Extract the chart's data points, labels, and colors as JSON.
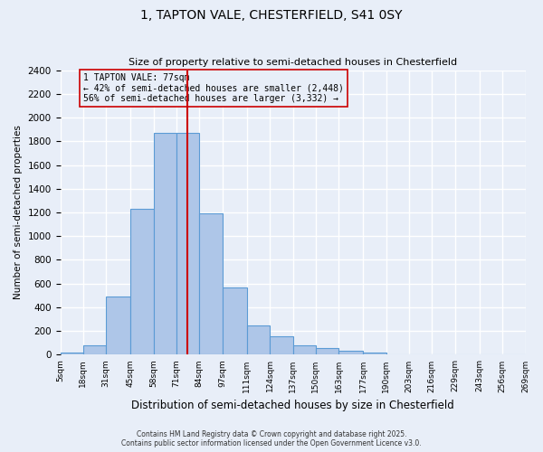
{
  "title": "1, TAPTON VALE, CHESTERFIELD, S41 0SY",
  "subtitle": "Size of property relative to semi-detached houses in Chesterfield",
  "xlabel": "Distribution of semi-detached houses by size in Chesterfield",
  "ylabel": "Number of semi-detached properties",
  "bins": [
    5,
    18,
    31,
    45,
    58,
    71,
    84,
    97,
    111,
    124,
    137,
    150,
    163,
    177,
    190,
    203,
    216,
    229,
    243,
    256,
    269
  ],
  "bin_labels": [
    "5sqm",
    "18sqm",
    "31sqm",
    "45sqm",
    "58sqm",
    "71sqm",
    "84sqm",
    "97sqm",
    "111sqm",
    "124sqm",
    "137sqm",
    "150sqm",
    "163sqm",
    "177sqm",
    "190sqm",
    "203sqm",
    "216sqm",
    "229sqm",
    "243sqm",
    "256sqm",
    "269sqm"
  ],
  "counts": [
    20,
    80,
    490,
    1230,
    1870,
    1870,
    1190,
    570,
    250,
    155,
    80,
    60,
    30,
    20,
    5,
    3,
    2,
    2,
    1,
    1
  ],
  "bar_facecolor": "#aec6e8",
  "bar_edgecolor": "#5b9bd5",
  "property_size": 77,
  "property_label": "1 TAPTON VALE: 77sqm",
  "pct_smaller": 42,
  "pct_larger": 56,
  "n_smaller": 2448,
  "n_larger": 3332,
  "vline_color": "#cc0000",
  "annotation_box_edgecolor": "#cc0000",
  "ylim": [
    0,
    2400
  ],
  "yticks": [
    0,
    200,
    400,
    600,
    800,
    1000,
    1200,
    1400,
    1600,
    1800,
    2000,
    2200,
    2400
  ],
  "background_color": "#e8eef8",
  "grid_color": "#ffffff",
  "footer_line1": "Contains HM Land Registry data © Crown copyright and database right 2025.",
  "footer_line2": "Contains public sector information licensed under the Open Government Licence v3.0."
}
